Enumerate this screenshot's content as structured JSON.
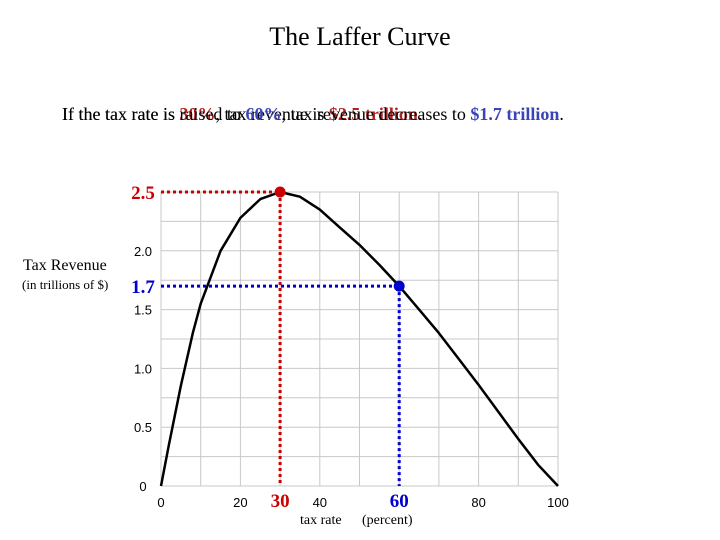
{
  "title": "The Laffer Curve",
  "scenarios": [
    {
      "prefix": "If the tax rate is ",
      "rate": "30%",
      "middle": ", tax revenue is ",
      "revenue": "$2.5 trillion",
      "suffix": ".",
      "color": "#b22222"
    },
    {
      "prefix": "If the tax rate is raised to ",
      "rate": "60%",
      "middle": ", tax revenue decreases to ",
      "revenue": "$1.7 trillion",
      "suffix": ".",
      "color": "#3a43b8"
    }
  ],
  "y_axis": {
    "label": "Tax Revenue",
    "unit": "(in trillions of $)"
  },
  "x_axis": {
    "label": "tax rate",
    "unit": "(percent)"
  },
  "chart_data": {
    "type": "line",
    "title": "The Laffer Curve",
    "xlabel": "tax rate (percent)",
    "ylabel": "Tax Revenue (in trillions of $)",
    "xlim": [
      0,
      100
    ],
    "ylim": [
      0,
      2.5
    ],
    "grid": true,
    "x_ticks": [
      "0",
      "20",
      "40",
      "80",
      "100"
    ],
    "y_ticks": [
      "0",
      "0.5",
      "1.0",
      "1.5",
      "2.0"
    ],
    "series": [
      {
        "x": [
          0,
          2,
          5,
          8,
          10,
          15,
          20,
          25,
          30,
          35,
          40,
          45,
          50,
          55,
          60,
          65,
          70,
          75,
          80,
          85,
          90,
          95,
          100
        ],
        "y": [
          0,
          0.35,
          0.85,
          1.3,
          1.55,
          2.0,
          2.28,
          2.44,
          2.5,
          2.46,
          2.35,
          2.2,
          2.05,
          1.88,
          1.7,
          1.5,
          1.3,
          1.08,
          0.86,
          0.63,
          0.4,
          0.18,
          0
        ],
        "color": "#000000"
      }
    ],
    "highlights": [
      {
        "x": 30,
        "y": 2.5,
        "x_label": "30",
        "y_label": "2.5",
        "color": "#cc0000"
      },
      {
        "x": 60,
        "y": 1.7,
        "x_label": "60",
        "y_label": "1.7",
        "color": "#0000cc"
      }
    ]
  }
}
